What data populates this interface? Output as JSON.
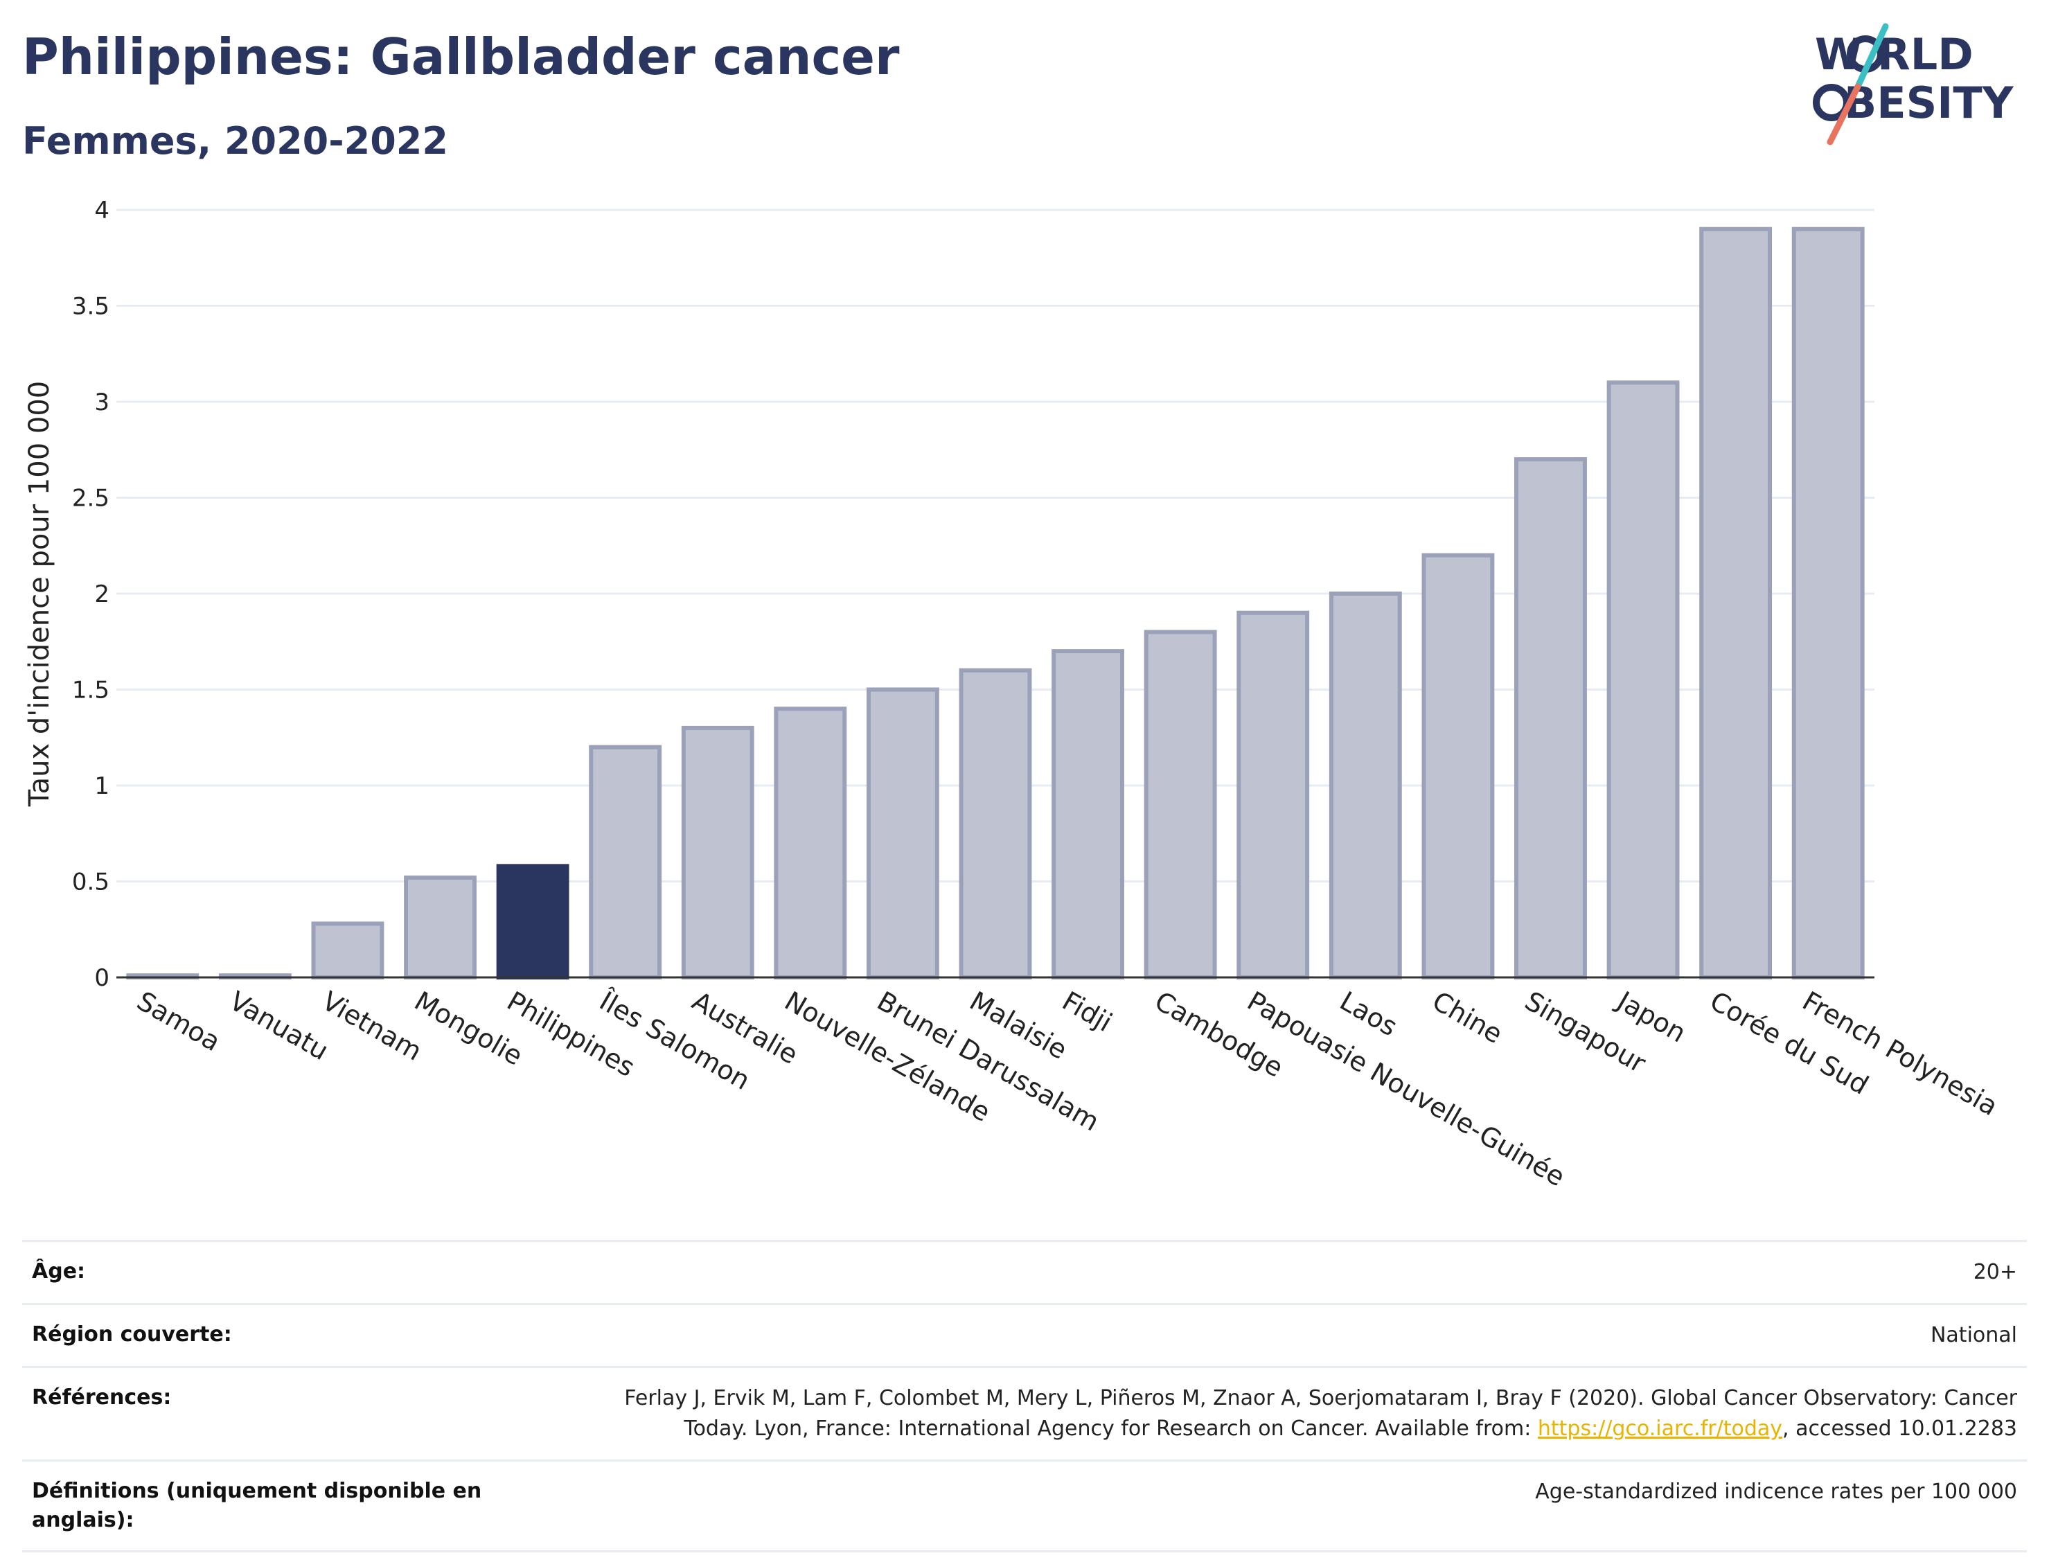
{
  "header": {
    "title": "Philippines: Gallbladder cancer",
    "subtitle": "Femmes, 2020-2022"
  },
  "logo": {
    "line1": "W RLD",
    "line2": "BESITY",
    "text": "WORLD OBESITY",
    "colors": {
      "text": "#2a3660",
      "slash_teal": "#3bbfc4",
      "slash_coral": "#e8735f"
    }
  },
  "chart_data": {
    "type": "bar",
    "ylabel": "Taux d'incidence pour 100 000",
    "xlabel": "",
    "ylim": [
      0,
      4
    ],
    "yticks": [
      0,
      0.5,
      1,
      1.5,
      2,
      2.5,
      3,
      3.5,
      4
    ],
    "ytick_labels": [
      "0",
      "0.5",
      "1",
      "1.5",
      "2",
      "2.5",
      "3",
      "3.5",
      "4"
    ],
    "categories": [
      "Samoa",
      "Vanuatu",
      "Vietnam",
      "Mongolie",
      "Philippines",
      "Îles Salomon",
      "Australie",
      "Nouvelle-Zélande",
      "Brunei Darussalam",
      "Malaisie",
      "Fidji",
      "Cambodge",
      "Papouasie Nouvelle-Guinée",
      "Laos",
      "Chine",
      "Singapour",
      "Japon",
      "Corée du Sud",
      "French Polynesia"
    ],
    "values": [
      0.01,
      0.01,
      0.28,
      0.52,
      0.58,
      1.2,
      1.3,
      1.4,
      1.5,
      1.6,
      1.7,
      1.8,
      1.9,
      2.0,
      2.2,
      2.7,
      3.1,
      3.9,
      3.9
    ],
    "highlight": "Philippines",
    "colors": {
      "bar": "#bfc3d1",
      "bar_edge": "#9aa1b8",
      "highlight": "#2a3660",
      "grid": "#e6ecf2",
      "axis": "#333333"
    },
    "grid": true
  },
  "meta": {
    "rows": [
      {
        "label": "Âge:",
        "value": "20+"
      },
      {
        "label": "Région couverte:",
        "value": "National"
      },
      {
        "label": "Références:",
        "value_line1": "Ferlay J, Ervik M, Lam F, Colombet M, Mery L, Piñeros M, Znaor A, Soerjomataram I, Bray F (2020). Global Cancer Observatory: Cancer",
        "value_line2_pre": "Today. Lyon, France: International Agency for Research on Cancer. Available from: ",
        "link": "https://gco.iarc.fr/today",
        "value_line2_post": ", accessed 10.01.2283"
      },
      {
        "label": "Définitions (uniquement disponible en anglais):",
        "value": "Age-standardized indicence rates per 100 000"
      }
    ]
  }
}
